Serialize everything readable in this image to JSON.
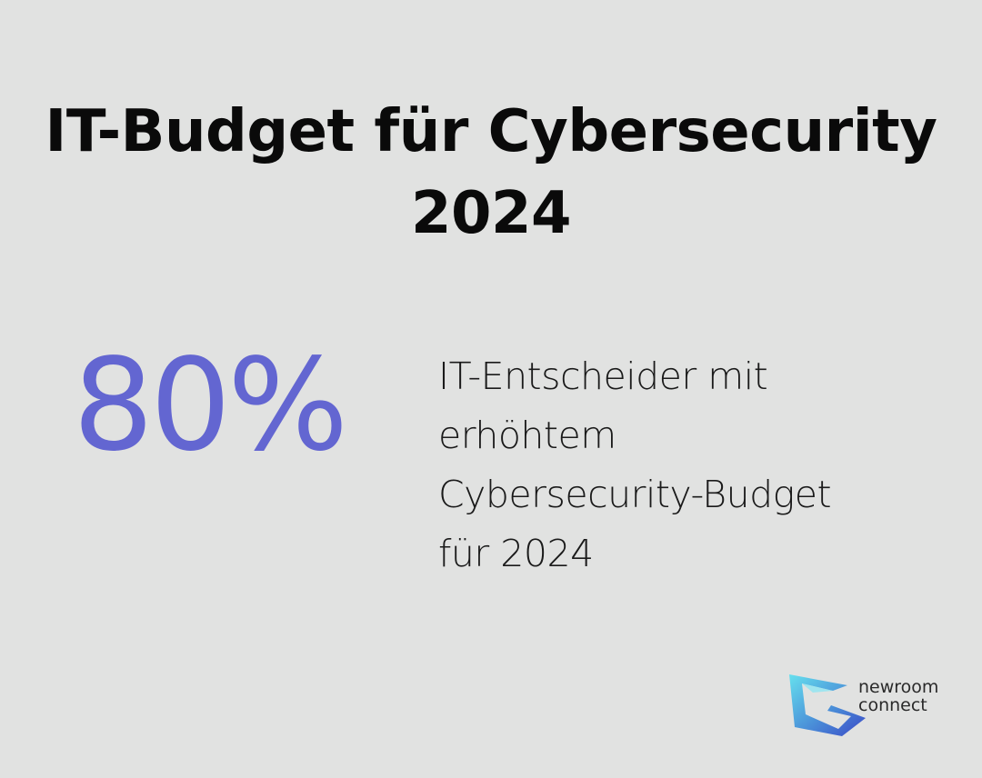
{
  "title": {
    "line1": "IT-Budget für Cybersecurity",
    "line2": "2024"
  },
  "stat": {
    "value": "80%",
    "description_lines": [
      "IT-Entscheider mit",
      "erhöhtem",
      "Cybersecurity-Budget",
      "für 2024"
    ]
  },
  "brand": {
    "line1": "newroom",
    "line2": "connect",
    "icon": "newroom-connect-logo-icon"
  },
  "colors": {
    "background": "#e1e2e1",
    "accent": "#6366d1",
    "text": "#0a0a0a",
    "logo_cyan": "#5fd3e8",
    "logo_blue": "#3b4fc8"
  }
}
